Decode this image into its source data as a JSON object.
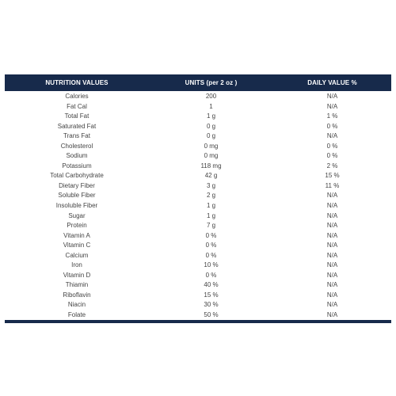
{
  "table": {
    "headers": {
      "name": "NUTRITION VALUES",
      "units": "UNITS (per 2 oz )",
      "daily_value": "DAILY VALUE %"
    },
    "rows": [
      {
        "name": "Calories",
        "units": "200",
        "dv": "N/A"
      },
      {
        "name": "Fat Cal",
        "units": "1",
        "dv": "N/A"
      },
      {
        "name": "Total Fat",
        "units": "1 g",
        "dv": "1 %"
      },
      {
        "name": "Saturated Fat",
        "units": "0 g",
        "dv": "0 %"
      },
      {
        "name": "Trans Fat",
        "units": "0 g",
        "dv": "N/A"
      },
      {
        "name": "Cholesterol",
        "units": "0 mg",
        "dv": "0 %"
      },
      {
        "name": "Sodium",
        "units": "0 mg",
        "dv": "0 %"
      },
      {
        "name": "Potassium",
        "units": "118 mg",
        "dv": "2 %"
      },
      {
        "name": "Total Carbohydrate",
        "units": "42 g",
        "dv": "15 %"
      },
      {
        "name": "Dietary Fiber",
        "units": "3 g",
        "dv": "11 %"
      },
      {
        "name": "Soluble Fiber",
        "units": "2 g",
        "dv": "N/A"
      },
      {
        "name": "Insoluble Fiber",
        "units": "1 g",
        "dv": "N/A"
      },
      {
        "name": "Sugar",
        "units": "1 g",
        "dv": "N/A"
      },
      {
        "name": "Protein",
        "units": "7 g",
        "dv": "N/A"
      },
      {
        "name": "Vitamin A",
        "units": "0 %",
        "dv": "N/A"
      },
      {
        "name": "Vitamin C",
        "units": "0 %",
        "dv": "N/A"
      },
      {
        "name": "Calcium",
        "units": "0 %",
        "dv": "N/A"
      },
      {
        "name": "Iron",
        "units": "10 %",
        "dv": "N/A"
      },
      {
        "name": "Vitamin D",
        "units": "0 %",
        "dv": "N/A"
      },
      {
        "name": "Thiamin",
        "units": "40 %",
        "dv": "N/A"
      },
      {
        "name": "Riboflavin",
        "units": "15 %",
        "dv": "N/A"
      },
      {
        "name": "Niacin",
        "units": "30 %",
        "dv": "N/A"
      },
      {
        "name": "Folate",
        "units": "50 %",
        "dv": "N/A"
      }
    ]
  },
  "colors": {
    "header_bg": "#172a4b",
    "header_text": "#ffffff",
    "body_text": "#444444"
  }
}
